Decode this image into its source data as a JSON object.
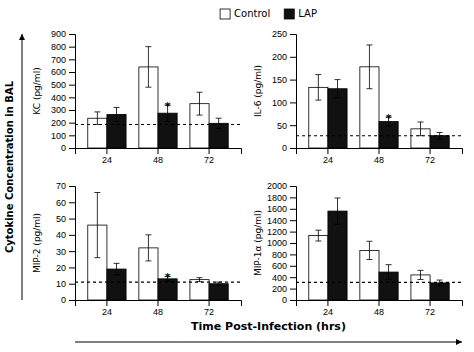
{
  "chart_data": {
    "type": "bar",
    "xlabel": "Time Post-Infection (hrs)",
    "ylabel": "Cytokine Concentration in BAL",
    "categories": [
      "24",
      "48",
      "72"
    ],
    "legend": "top",
    "subplots": [
      {
        "type": "bar",
        "ylabel": "KC (pg/ml)",
        "ylim": [
          0,
          900
        ],
        "yticks": [
          0,
          100,
          200,
          300,
          400,
          500,
          600,
          700,
          800,
          900
        ],
        "series": [
          {
            "name": "Control",
            "color": "#ffffff",
            "values": [
              235,
              640,
              350
            ],
            "errors": [
              50,
              160,
              90
            ]
          },
          {
            "name": "LAP",
            "color": "#111111",
            "values": [
              265,
              275,
              195
            ],
            "errors": [
              55,
              65,
              40
            ]
          }
        ],
        "reference_line": 185,
        "annotations": [
          {
            "text": "*",
            "category_index": 1,
            "series_index": 1,
            "y": 345
          }
        ]
      },
      {
        "type": "bar",
        "ylabel": "IL-6 (pg/ml)",
        "ylim": [
          0,
          250
        ],
        "yticks": [
          0,
          50,
          100,
          150,
          200,
          250
        ],
        "series": [
          {
            "name": "Control",
            "color": "#ffffff",
            "values": [
              133,
              178,
              42
            ],
            "errors": [
              28,
              48,
              15
            ]
          },
          {
            "name": "LAP",
            "color": "#111111",
            "values": [
              130,
              58,
              27
            ],
            "errors": [
              20,
              10,
              7
            ]
          }
        ],
        "reference_line": 27,
        "annotations": [
          {
            "text": "*",
            "category_index": 1,
            "series_index": 1,
            "y": 70
          }
        ]
      },
      {
        "type": "bar",
        "ylabel": "MIP-2 (pg/ml)",
        "ylim": [
          0,
          70
        ],
        "yticks": [
          0,
          10,
          20,
          30,
          40,
          50,
          60,
          70
        ],
        "series": [
          {
            "name": "Control",
            "color": "#ffffff",
            "values": [
              46,
              32,
              12.5
            ],
            "errors": [
              20,
              8,
              1.2
            ]
          },
          {
            "name": "LAP",
            "color": "#111111",
            "values": [
              19,
              13,
              10
            ],
            "errors": [
              3.5,
              1.5,
              1.0
            ]
          }
        ],
        "reference_line": 11,
        "annotations": [
          {
            "text": "*",
            "category_index": 1,
            "series_index": 1,
            "y": 15.5
          }
        ]
      },
      {
        "type": "bar",
        "ylabel": "MIP-1α (pg/ml)",
        "ylim": [
          0,
          2000
        ],
        "yticks": [
          0,
          200,
          400,
          600,
          800,
          1000,
          1200,
          1400,
          1600,
          1800,
          2000
        ],
        "series": [
          {
            "name": "Control",
            "color": "#ffffff",
            "values": [
              1130,
              870,
              440
            ],
            "errors": [
              95,
              160,
              80
            ]
          },
          {
            "name": "LAP",
            "color": "#111111",
            "values": [
              1560,
              490,
              300
            ],
            "errors": [
              230,
              130,
              50
            ]
          }
        ],
        "reference_line": 310
      }
    ]
  }
}
